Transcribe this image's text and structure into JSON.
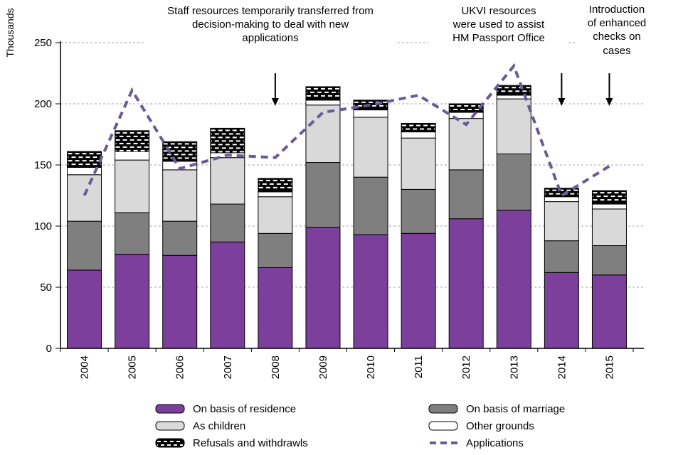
{
  "chart_data": {
    "type": "bar",
    "stacked": true,
    "ylabel": "Thousands",
    "ylim": [
      0,
      250
    ],
    "yticks": [
      0,
      50,
      100,
      150,
      200,
      250
    ],
    "grid": "dashed-horizontal",
    "legend_position": "bottom",
    "categories": [
      "2004",
      "2005",
      "2006",
      "2007",
      "2008",
      "2009",
      "2010",
      "2011",
      "2012",
      "2013",
      "2014",
      "2015"
    ],
    "series": [
      {
        "name": "On basis of residence",
        "type": "bar",
        "color": "#7c3f9c",
        "values": [
          64,
          77,
          76,
          87,
          66,
          99,
          93,
          94,
          106,
          113,
          62,
          60
        ]
      },
      {
        "name": "On basis of marriage",
        "type": "bar",
        "color": "#7f7f7f",
        "values": [
          40,
          34,
          28,
          31,
          28,
          53,
          47,
          36,
          40,
          46,
          26,
          24
        ]
      },
      {
        "name": "As children",
        "type": "bar",
        "color": "#d9d9d9",
        "values": [
          38,
          43,
          42,
          38,
          30,
          47,
          49,
          42,
          42,
          45,
          32,
          30
        ]
      },
      {
        "name": "Other grounds",
        "type": "bar",
        "color": "#ffffff",
        "values": [
          6,
          7,
          7,
          4,
          4,
          4,
          6,
          5,
          5,
          3,
          4,
          4
        ]
      },
      {
        "name": "Refusals and withdrawls",
        "type": "bar",
        "color": "#000000",
        "pattern": "white-dashes",
        "values": [
          13,
          17,
          16,
          20,
          11,
          11,
          8,
          7,
          7,
          8,
          7,
          11
        ]
      },
      {
        "name": "Applications",
        "type": "line",
        "style": "dashed",
        "color": "#6a5a95",
        "values": [
          125,
          211,
          147,
          158,
          156,
          193,
          199,
          207,
          183,
          231,
          125,
          149
        ]
      }
    ],
    "annotations": [
      {
        "text": "Staff resources temporarily transferred from\ndecision-making to deal with new\napplications",
        "arrow_year": "2008"
      },
      {
        "text": "UKVI resources\nwere used to assist\nHM Passport Office",
        "arrow_year": "2014"
      },
      {
        "text": "Introduction\nof enhanced\nchecks on\ncases",
        "arrow_year": "2015"
      }
    ],
    "legend": {
      "left_column": [
        "On basis of residence",
        "As children",
        "Refusals and withdrawls"
      ],
      "right_column": [
        "On basis of marriage",
        "Other grounds",
        "Applications"
      ]
    }
  }
}
